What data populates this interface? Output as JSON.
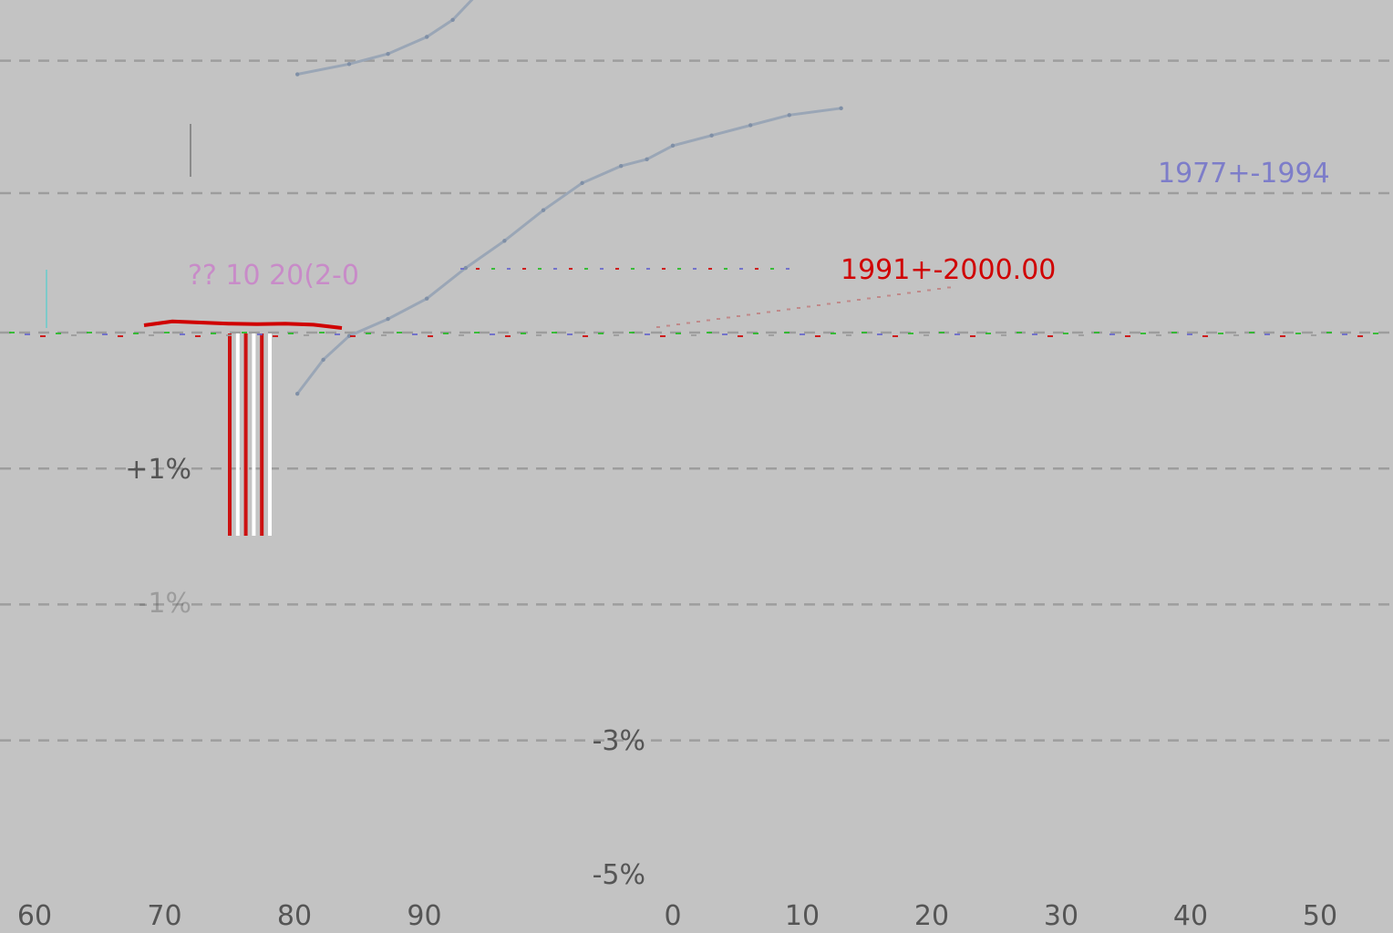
{
  "colors": {
    "background": "#c3c3c3",
    "grid": "#9d9d9d",
    "text": "#555555",
    "curve": "#9aa6b6",
    "red": "#d00000",
    "blue": "#6666cc",
    "magenta": "#cc66cc",
    "green": "#22bb22"
  },
  "chart_data": [
    {
      "type": "line",
      "panel": "left",
      "x_ticks": [
        "60",
        "70",
        "80",
        "90"
      ],
      "xlim": [
        56,
        98
      ],
      "y_tick_labels": [
        {
          "value": 1,
          "label": "+1%"
        },
        {
          "value": -1,
          "label": "-1%"
        }
      ],
      "ylim": [
        -5,
        5
      ],
      "series": [
        {
          "style": "red-highlight",
          "x": [
            67.5,
            70,
            72,
            74,
            76,
            78,
            80,
            81.5
          ],
          "y": [
            3.05,
            3.12,
            3.1,
            3.08,
            3.07,
            3.08,
            3.06,
            3.0
          ]
        }
      ],
      "bars": {
        "x": [
          74.8,
          75.7,
          76.6,
          77.5,
          78.4,
          79.3
        ],
        "top": [
          3.0,
          3.0,
          3.0,
          3.0,
          3.0,
          3.0
        ],
        "bottom": [
          0.0,
          0.0,
          0.0,
          0.0,
          0.0,
          0.0
        ]
      },
      "annotation": "?? 10 20(2-0"
    },
    {
      "type": "line",
      "panel": "right",
      "x_ticks": [
        "0",
        "10",
        "20",
        "30",
        "40",
        "50"
      ],
      "xlim": [
        -13,
        55
      ],
      "y_tick_labels": [
        {
          "value": -3,
          "label": "-3%"
        },
        {
          "value": -5,
          "label": "-5%"
        }
      ],
      "ylim": [
        -5,
        5
      ],
      "annotations": [
        "1991+-2000.00",
        "1977+-1994"
      ]
    }
  ],
  "curve": {
    "x": [
      -29,
      -27,
      -25,
      -22,
      -19,
      -16,
      -13,
      -10,
      -7,
      -4,
      -2,
      0,
      3,
      6,
      9,
      13
    ],
    "y": [
      -0.9,
      -0.4,
      -0.05,
      0.2,
      0.5,
      0.95,
      1.35,
      1.8,
      2.2,
      2.45,
      2.55,
      2.75,
      2.9,
      3.05,
      3.2,
      3.3
    ]
  },
  "curve_upper": {
    "x": [
      -29,
      -25,
      -22,
      -19,
      -17,
      -15
    ],
    "y": [
      3.8,
      3.95,
      4.1,
      4.35,
      4.6,
      5.0
    ]
  }
}
